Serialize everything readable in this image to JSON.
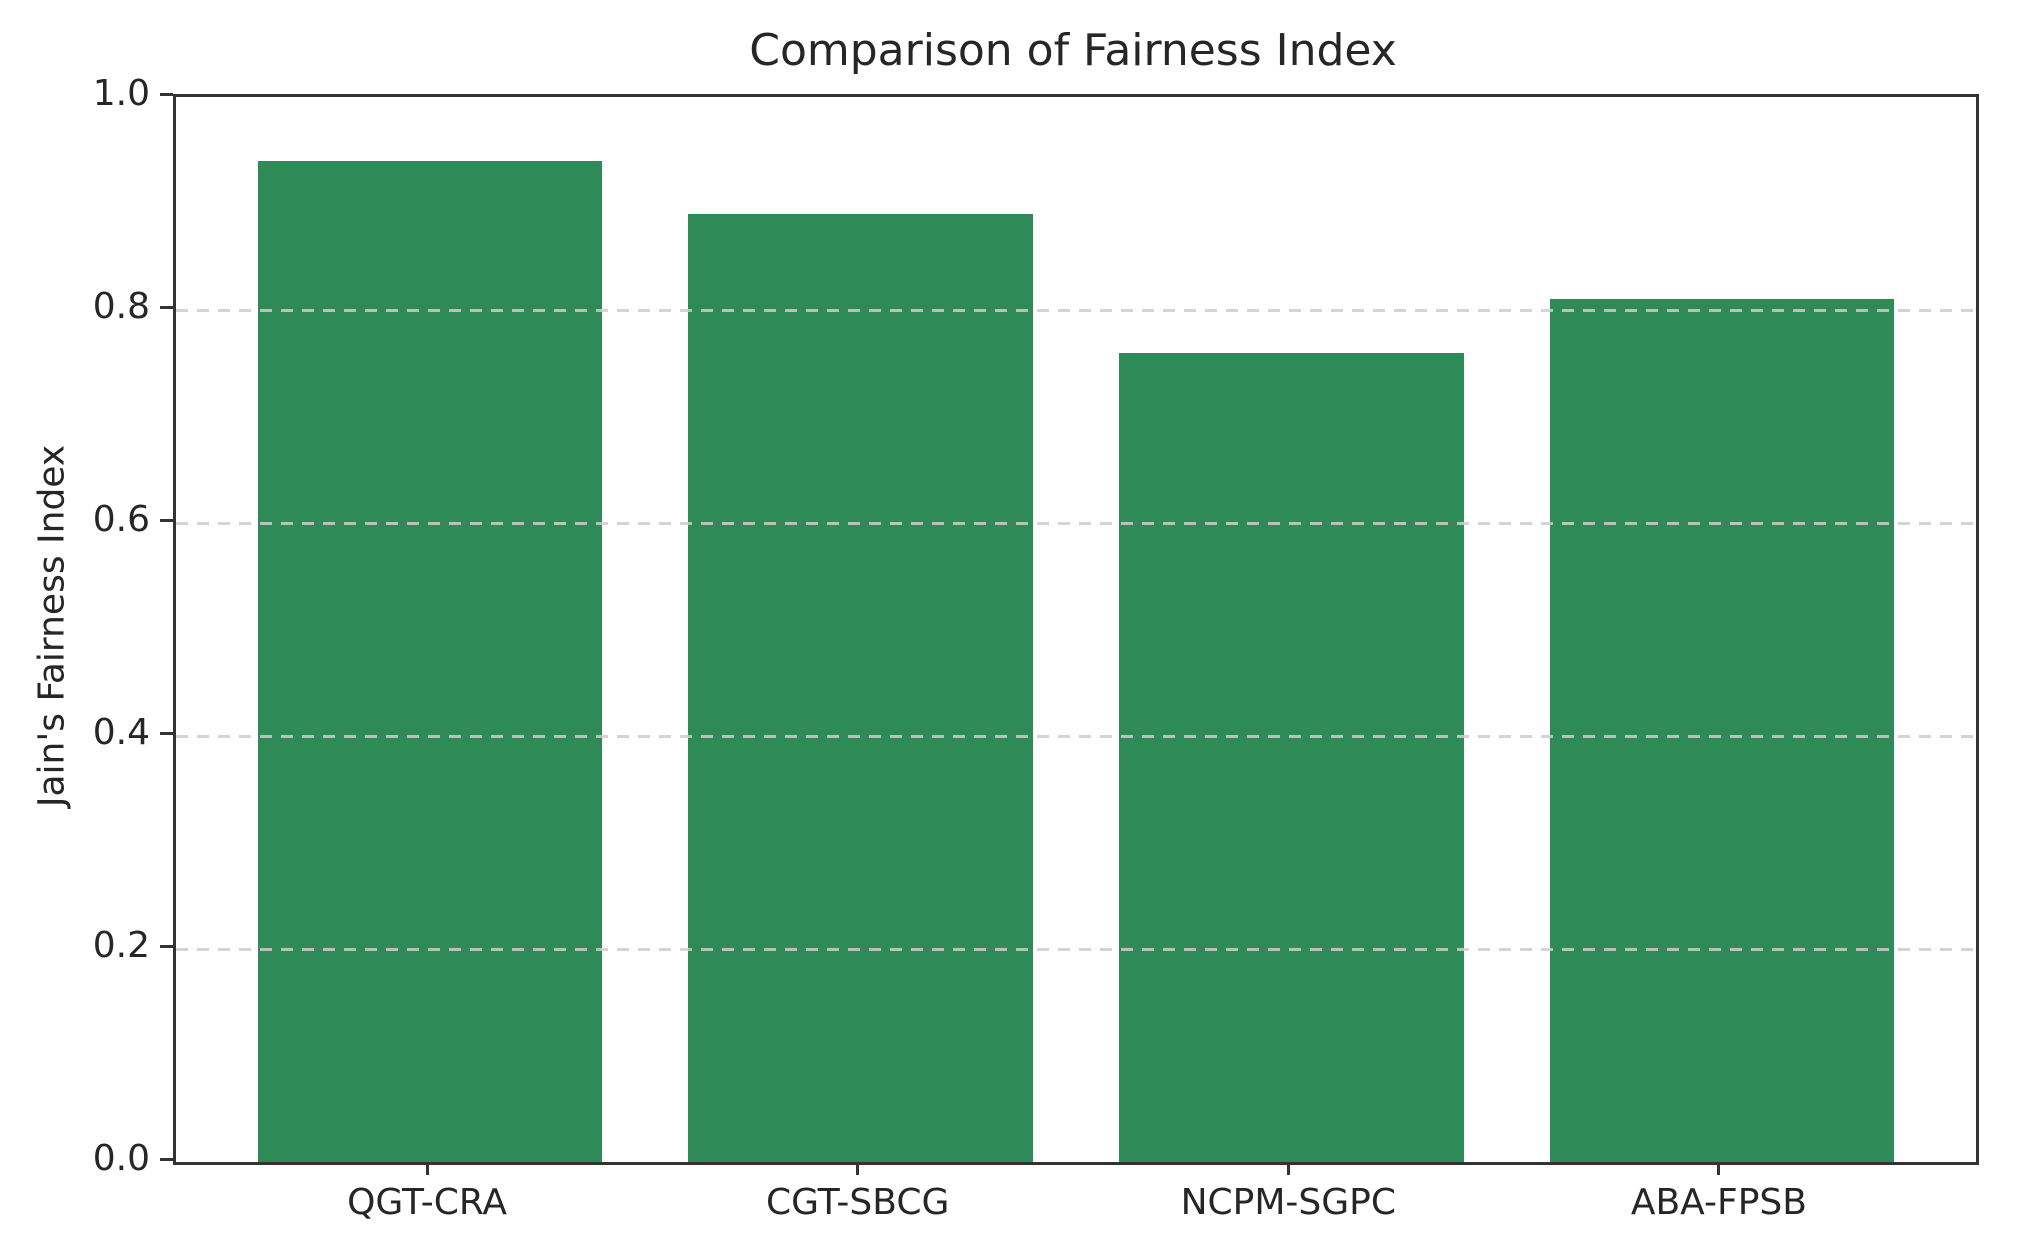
{
  "chart_data": {
    "type": "bar",
    "title": "Comparison of Fairness Index",
    "ylabel": "Jain's Fairness Index",
    "xlabel": "",
    "categories": [
      "QGT-CRA",
      "CGT-SBCG",
      "NCPM-SGPC",
      "ABA-FPSB"
    ],
    "values": [
      0.94,
      0.89,
      0.76,
      0.81
    ],
    "ylim": [
      0.0,
      1.0
    ],
    "yticks": [
      0.0,
      0.2,
      0.4,
      0.6,
      0.8,
      1.0
    ],
    "ytick_labels": [
      "0.0",
      "0.2",
      "0.4",
      "0.6",
      "0.8",
      "1.0"
    ],
    "bar_color": "#2e8b57",
    "grid": "horizontal-dashed-above-bars",
    "grid_color": "#cdcdcd",
    "spine_color": "#333333",
    "legend": "none"
  }
}
